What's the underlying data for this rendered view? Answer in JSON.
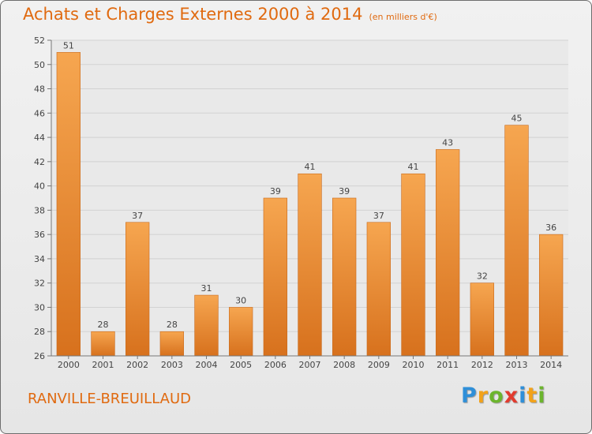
{
  "header": {
    "title": "Achats et Charges Externes 2000 à 2014",
    "unit": "(en milliers d'€)"
  },
  "footer": {
    "place": "RANVILLE-BREUILLAUD"
  },
  "logo": {
    "letters": [
      "P",
      "r",
      "o",
      "x",
      "i",
      "t",
      "i"
    ],
    "colors": [
      "#2f8fd8",
      "#f2a21a",
      "#6cb52d",
      "#e23b2e",
      "#2f8fd8",
      "#f2a21a",
      "#6cb52d"
    ]
  },
  "chart_data": {
    "type": "bar",
    "categories": [
      "2000",
      "2001",
      "2002",
      "2003",
      "2004",
      "2005",
      "2006",
      "2007",
      "2008",
      "2009",
      "2010",
      "2011",
      "2012",
      "2013",
      "2014"
    ],
    "values": [
      51,
      28,
      37,
      28,
      31,
      30,
      39,
      41,
      39,
      37,
      41,
      43,
      32,
      45,
      36
    ],
    "ylim": [
      26,
      52
    ],
    "yticks": [
      26,
      28,
      30,
      32,
      34,
      36,
      38,
      40,
      42,
      44,
      46,
      48,
      50,
      52
    ],
    "grid": "horizontal",
    "bar_color": "#ee8a2c"
  }
}
